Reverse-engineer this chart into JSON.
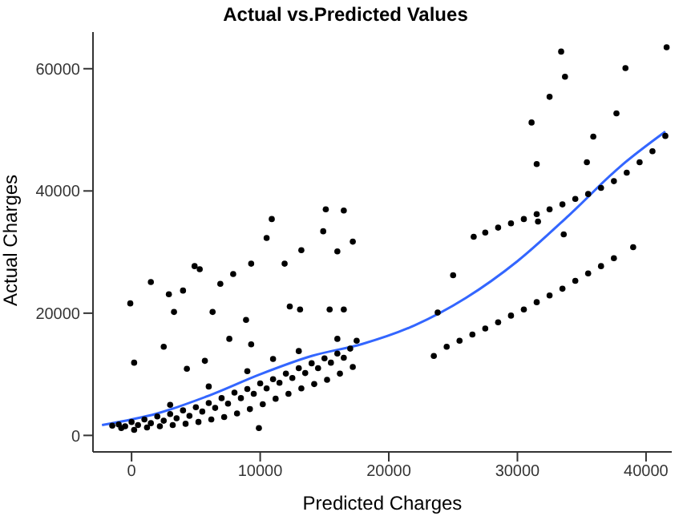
{
  "chart_data": {
    "type": "scatter",
    "title": "Actual vs.Predicted Values",
    "xlabel": "Predicted Charges",
    "ylabel": "Actual Charges",
    "xlim": [
      -3000,
      42000
    ],
    "ylim": [
      -2700,
      66000
    ],
    "xticks": [
      0,
      10000,
      20000,
      30000,
      40000
    ],
    "yticks": [
      0,
      20000,
      40000,
      60000
    ],
    "grid": false,
    "legend": false,
    "marker": "circle",
    "series": [
      {
        "color": "#000000",
        "x": [
          -1500,
          -1000,
          -500,
          0,
          500,
          1000,
          1500,
          2000,
          2500,
          3000,
          3500,
          4000,
          4500,
          5000,
          5500,
          6000,
          6500,
          7000,
          7500,
          8000,
          8500,
          9000,
          9500,
          10000,
          10500,
          11000,
          11500,
          12000,
          12500,
          13000,
          13500,
          14000,
          14500,
          15000,
          15500,
          16000,
          16500,
          17000,
          17500,
          -800,
          200,
          1200,
          2200,
          3200,
          4200,
          5200,
          6200,
          7200,
          8200,
          9200,
          10200,
          11200,
          12200,
          13200,
          14200,
          15200,
          16200,
          17200,
          3000,
          6000,
          9000,
          11000,
          13000,
          16000,
          9900,
          -100,
          200,
          1500,
          2900,
          2500,
          3300,
          4000,
          4900,
          5300,
          6900,
          6300,
          7900,
          9300,
          10900,
          10500,
          11900,
          13200,
          15100,
          16500,
          14900,
          17200,
          16000,
          15400,
          16500,
          12300,
          8900,
          7600,
          5700,
          4300,
          9300,
          13100,
          23500,
          24500,
          25500,
          26500,
          27500,
          28500,
          29500,
          30500,
          31500,
          32500,
          33500,
          34500,
          35500,
          36500,
          37500,
          39000,
          26600,
          27500,
          28500,
          29500,
          30500,
          31500,
          32500,
          33500,
          34500,
          35500,
          36500,
          37500,
          38500,
          39500,
          40500,
          41500,
          33400,
          41600,
          38400,
          33700,
          32500,
          31100,
          37700,
          35900,
          31500,
          35400,
          33600,
          31600,
          25000,
          23800
        ],
        "values": [
          1600,
          1800,
          1500,
          2200,
          1700,
          2600,
          2000,
          3100,
          2400,
          3500,
          2800,
          4100,
          3200,
          4600,
          3900,
          5300,
          4500,
          6100,
          5200,
          7000,
          6100,
          7600,
          6800,
          8500,
          7700,
          9200,
          8600,
          10100,
          9400,
          11000,
          10200,
          11800,
          11000,
          12600,
          11900,
          13400,
          12700,
          14200,
          15500,
          1200,
          900,
          1300,
          1500,
          1700,
          1900,
          2200,
          2600,
          3000,
          3600,
          4300,
          5100,
          6000,
          6800,
          7700,
          8400,
          9100,
          10100,
          11200,
          5000,
          8000,
          10500,
          12500,
          13800,
          15800,
          1200,
          21600,
          11900,
          25100,
          23100,
          14500,
          20200,
          23700,
          27700,
          27200,
          24800,
          20200,
          26400,
          28100,
          35400,
          32300,
          28100,
          30300,
          37000,
          36800,
          33400,
          31700,
          30100,
          20600,
          20600,
          21100,
          18900,
          15800,
          12200,
          10900,
          14900,
          20600,
          13000,
          14500,
          15500,
          16500,
          17500,
          18500,
          19600,
          20600,
          21800,
          22900,
          24000,
          25300,
          26500,
          27700,
          29000,
          30800,
          32500,
          33200,
          34000,
          34700,
          35400,
          36200,
          37000,
          37800,
          38700,
          39500,
          40500,
          41600,
          43000,
          44700,
          46500,
          49000,
          62800,
          63500,
          60100,
          58700,
          55400,
          51200,
          52700,
          48900,
          44400,
          44700,
          32900,
          35000,
          26200,
          20100
        ]
      },
      {
        "type": "line",
        "marker": "none",
        "color": "#3366ff",
        "x": [
          -2300,
          2000,
          6000,
          10000,
          14000,
          18000,
          22000,
          26000,
          30000,
          34000,
          38000,
          41500
        ],
        "values": [
          1700,
          3600,
          6500,
          10000,
          13000,
          15000,
          18000,
          22500,
          28500,
          36000,
          44000,
          49700
        ]
      }
    ]
  }
}
